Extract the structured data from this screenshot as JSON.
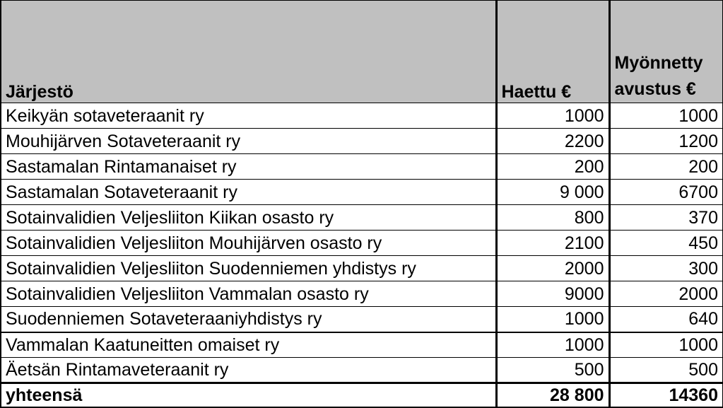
{
  "headers": {
    "organization": "Järjestö",
    "applied": "Haettu €",
    "granted": "Myönnetty avustus €"
  },
  "rows": [
    {
      "organization": "Keikyän sotaveteraanit ry",
      "applied": "1000",
      "granted": "1000"
    },
    {
      "organization": "Mouhijärven Sotaveteraanit ry",
      "applied": "2200",
      "granted": "1200"
    },
    {
      "organization": "Sastamalan Rintamanaiset ry",
      "applied": "200",
      "granted": "200"
    },
    {
      "organization": "Sastamalan Sotaveteraanit ry",
      "applied": "9 000",
      "granted": "6700"
    },
    {
      "organization": "Sotainvalidien Veljesliiton Kiikan osasto ry",
      "applied": "800",
      "granted": "370"
    },
    {
      "organization": "Sotainvalidien Veljesliiton Mouhijärven osasto ry",
      "applied": "2100",
      "granted": "450"
    },
    {
      "organization": "Sotainvalidien Veljesliiton Suodenniemen yhdistys ry",
      "applied": "2000",
      "granted": "300"
    },
    {
      "organization": "Sotainvalidien Veljesliiton Vammalan osasto ry",
      "applied": "9000",
      "granted": "2000"
    },
    {
      "organization": "Suodenniemen Sotaveteraaniyhdistys ry",
      "applied": "1000",
      "granted": "640"
    },
    {
      "organization": "Vammalan Kaatuneitten omaiset ry",
      "applied": "1000",
      "granted": "1000"
    },
    {
      "organization": "Äetsän Rintamaveteraanit ry",
      "applied": "500",
      "granted": "500"
    }
  ],
  "total": {
    "label": "yhteensä",
    "applied": "28 800",
    "granted": "14360"
  },
  "colors": {
    "header_background": "#c0c0c0",
    "border": "#000000"
  }
}
